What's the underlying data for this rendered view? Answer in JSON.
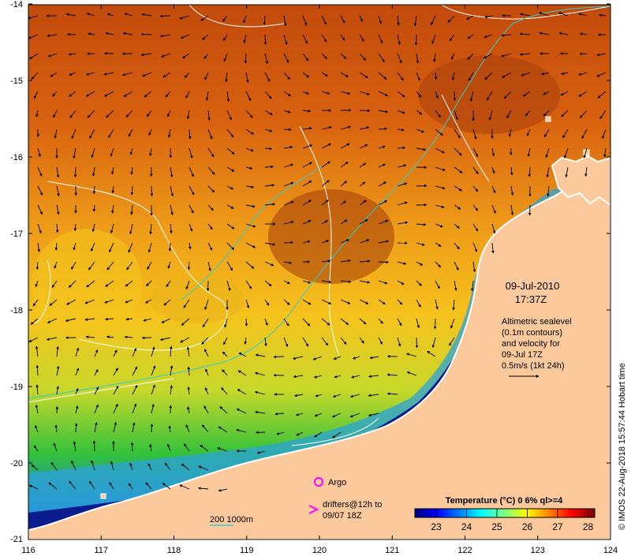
{
  "axes": {
    "x_ticks": [
      "116",
      "117",
      "118",
      "119",
      "120",
      "121",
      "122",
      "123",
      "124"
    ],
    "y_ticks": [
      "-14",
      "-15",
      "-16",
      "-17",
      "-18",
      "-19",
      "-20",
      "-21"
    ]
  },
  "annotations": {
    "date": "09-Jul-2010",
    "time": "17:37Z",
    "altimetry_lines": [
      "Altimetric sealevel",
      "(0.1m contours)",
      "and velocity for",
      "09-Jul 17Z",
      "0.5m/s (1kt 24h)"
    ]
  },
  "legend": {
    "argo": "Argo",
    "drifters_line1": "drifters@12h to",
    "drifters_line2": "09/07 18Z",
    "bathymetry": "200  1000m",
    "colorbar_title": "Temperature (°C) 0 6% ql>=4",
    "colorbar_ticks": [
      "23",
      "24",
      "25",
      "26",
      "27",
      "28"
    ],
    "colors": {
      "argo_marker": "#ff00ff",
      "drifter_marker": "#ff00ff",
      "bathymetry_contour": "#33cccc",
      "land": "#fbc99b",
      "colorbar": [
        "#00007f",
        "#0000ff",
        "#007fff",
        "#00ffff",
        "#7fff7f",
        "#ffff00",
        "#ff7f00",
        "#ff0000",
        "#7f0000"
      ]
    }
  },
  "credit": "© IMOS 22-Aug-2018 15:57:44 Hobart time"
}
